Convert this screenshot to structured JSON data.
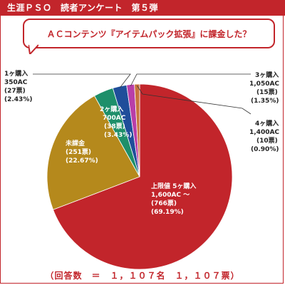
{
  "header": {
    "title": "生涯ＰＳＯ　読者アンケート　第５弾"
  },
  "question": {
    "text": "ＡＣコンテンツ『アイテムパック拡張』に課金した？"
  },
  "footer": {
    "text": "（回答数　＝　１，１０７名　１，１０７票）"
  },
  "colors": {
    "accent": "#c2252b"
  },
  "chart_data": {
    "type": "pie",
    "title": "ＡＣコンテンツ『アイテムパック拡張』に課金した？",
    "total_label": "（回答数　＝　１，１０７名　１，１０７票）",
    "slices": [
      {
        "name": "上限値 5ヶ購入",
        "price": "1,600AC ～",
        "votes": "(766票)",
        "percent": "(69.19%)",
        "value": 69.19,
        "color": "#c2252b"
      },
      {
        "name": "未課金",
        "price": "",
        "votes": "(251票)",
        "percent": "(22.67%)",
        "value": 22.67,
        "color": "#b5891c"
      },
      {
        "name": "2ヶ購入",
        "price": "700AC",
        "votes": "(38票)",
        "percent": "(3.43%)",
        "value": 3.43,
        "color": "#1e8f6a"
      },
      {
        "name": "1ヶ購入",
        "price": "350AC",
        "votes": "(27票)",
        "percent": "(2.43%)",
        "value": 2.43,
        "color": "#1f4e9a"
      },
      {
        "name": "3ヶ購入",
        "price": "1,050AC",
        "votes": "(15票)",
        "percent": "(1.35%)",
        "value": 1.35,
        "color": "#b83ea8"
      },
      {
        "name": "4ヶ購入",
        "price": "1,400AC",
        "votes": "(10票)",
        "percent": "(0.90%)",
        "value": 0.9,
        "color": "#c8733d"
      }
    ]
  }
}
